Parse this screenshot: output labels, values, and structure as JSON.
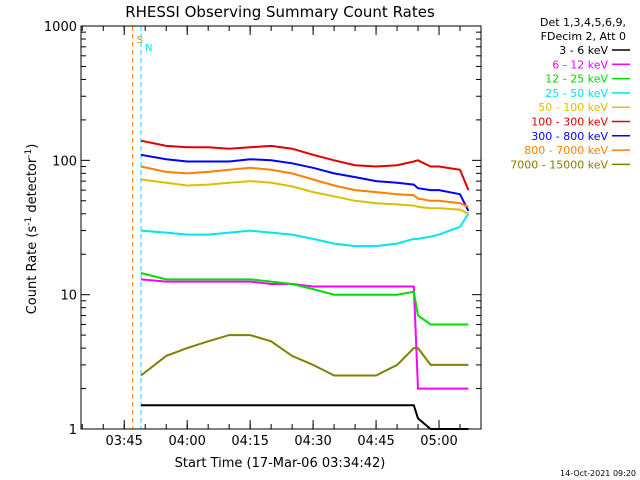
{
  "chart_data": {
    "type": "line",
    "title": "RHESSI Observing Summary Count Rates",
    "xlabel": "Start Time (17-Mar-06 03:34:42)",
    "ylabel": "Count Rate (s",
    "ylabel_sup": "-1",
    "ylabel_tail": " detector",
    "ylabel_tail_sup": "-1",
    "ylabel_close": ")",
    "yscale": "log",
    "ylim": [
      1,
      1000
    ],
    "xlim": [
      "03:34:42",
      "05:10:00"
    ],
    "x_ticks": [
      "03:45",
      "04:00",
      "04:15",
      "04:30",
      "04:45",
      "05:00"
    ],
    "y_ticks": [
      "1",
      "10",
      "100",
      "1000"
    ],
    "legend": {
      "placement": "outside-right",
      "header": [
        "Det 1,3,4,5,6,9,",
        "FDecim 2, Att 0"
      ]
    },
    "markers": [
      {
        "label": "S",
        "time": "03:47",
        "color": "#ff8000"
      },
      {
        "label": "N",
        "time": "03:49",
        "color": "#00e0ff"
      }
    ],
    "series": [
      {
        "name": "3 - 6 keV",
        "color": "#000000"
      },
      {
        "name": "6 - 12 keV",
        "color": "#ff00ff"
      },
      {
        "name": "12 - 25 keV",
        "color": "#00dd00"
      },
      {
        "name": "25 - 50 keV",
        "color": "#00e5ee"
      },
      {
        "name": "50 - 100 keV",
        "color": "#d9c000"
      },
      {
        "name": "100 - 300 keV",
        "color": "#e00000"
      },
      {
        "name": "300 - 800 keV",
        "color": "#0000ff"
      },
      {
        "name": "800 - 7000 keV",
        "color": "#ff8000"
      },
      {
        "name": "7000 - 15000 keV",
        "color": "#808000"
      }
    ],
    "series_points": {
      "t": [
        "03:49",
        "03:55",
        "04:00",
        "04:05",
        "04:10",
        "04:15",
        "04:20",
        "04:25",
        "04:30",
        "04:35",
        "04:40",
        "04:45",
        "04:50",
        "04:54",
        "04:55",
        "04:58",
        "05:00",
        "05:05",
        "05:07"
      ],
      "100 - 300 keV": [
        140,
        128,
        125,
        125,
        122,
        125,
        128,
        122,
        110,
        100,
        92,
        90,
        92,
        98,
        100,
        90,
        90,
        85,
        60
      ],
      "300 - 800 keV": [
        110,
        102,
        98,
        98,
        98,
        102,
        100,
        95,
        88,
        80,
        75,
        70,
        68,
        66,
        62,
        60,
        60,
        56,
        42
      ],
      "800 - 7000 keV": [
        90,
        82,
        80,
        82,
        85,
        88,
        85,
        80,
        72,
        65,
        60,
        58,
        56,
        55,
        52,
        50,
        50,
        48,
        45
      ],
      "50 - 100 keV": [
        72,
        68,
        65,
        66,
        68,
        70,
        68,
        64,
        58,
        54,
        50,
        48,
        47,
        46,
        45,
        44,
        44,
        43,
        40
      ],
      "25 - 50 keV": [
        30,
        29,
        28,
        28,
        29,
        30,
        29,
        28,
        26,
        24,
        23,
        23,
        24,
        26,
        26,
        27,
        28,
        32,
        40
      ],
      "12 - 25 keV": [
        14.5,
        13,
        13,
        13,
        13,
        13,
        12.5,
        12,
        11,
        10,
        10,
        10,
        10,
        10.5,
        7,
        6,
        6,
        6,
        6
      ],
      "6 - 12 keV": [
        13,
        12.5,
        12.5,
        12.5,
        12.5,
        12.5,
        12,
        12,
        11.5,
        11.5,
        11.5,
        11.5,
        11.5,
        11.5,
        2,
        2,
        2,
        2,
        2
      ],
      "7000 - 15000 keV": [
        2.5,
        3.5,
        4,
        4.5,
        5,
        5,
        4.5,
        3.5,
        3,
        2.5,
        2.5,
        2.5,
        3,
        4,
        4,
        3,
        3,
        3,
        3
      ],
      "3 - 6 keV": [
        1.5,
        1.5,
        1.5,
        1.5,
        1.5,
        1.5,
        1.5,
        1.5,
        1.5,
        1.5,
        1.5,
        1.5,
        1.5,
        1.5,
        1.2,
        1,
        1,
        1,
        1
      ]
    }
  },
  "footer": {
    "timestamp": "14-Oct-2021 09:20"
  }
}
